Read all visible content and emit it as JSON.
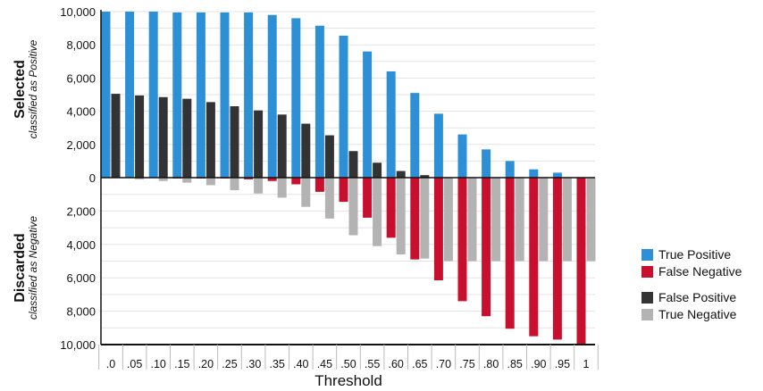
{
  "chart_data": {
    "type": "bar",
    "xlabel": "Threshold",
    "top_label": {
      "title": "Selected",
      "subtitle": "classified as Positive"
    },
    "bottom_label": {
      "title": "Discarded",
      "subtitle": "classified as Negative"
    },
    "yticks_top": [
      "10,000",
      "8,000",
      "6,000",
      "4,000",
      "2,000",
      "0"
    ],
    "yticks_bottom": [
      "2,000",
      "4,000",
      "6,000",
      "8,000",
      "10,000"
    ],
    "ylim_top": [
      0,
      10000
    ],
    "ylim_bottom": [
      0,
      10000
    ],
    "categories": [
      ".0",
      ".05",
      ".10",
      ".15",
      ".20",
      ".25",
      ".30",
      ".35",
      ".40",
      ".45",
      ".50",
      ".55",
      ".60",
      ".65",
      ".70",
      ".75",
      ".80",
      ".85",
      ".90",
      ".95",
      "1"
    ],
    "series": [
      {
        "name": "True Positive",
        "direction": "up",
        "color": "#2d8fd5",
        "values": [
          10000,
          10000,
          10000,
          9950,
          9950,
          9950,
          9950,
          9800,
          9600,
          9150,
          8550,
          7600,
          6400,
          5100,
          3850,
          2600,
          1700,
          1000,
          500,
          300,
          0
        ]
      },
      {
        "name": "False Positive",
        "direction": "up",
        "color": "#333333",
        "values": [
          5050,
          4950,
          4850,
          4750,
          4550,
          4300,
          4050,
          3800,
          3250,
          2550,
          1600,
          900,
          400,
          150,
          0,
          0,
          0,
          0,
          0,
          0,
          0
        ]
      },
      {
        "name": "False Negative",
        "direction": "down",
        "color": "#c8102e",
        "values": [
          0,
          0,
          0,
          50,
          50,
          50,
          100,
          200,
          400,
          850,
          1450,
          2400,
          3600,
          4900,
          6150,
          7400,
          8300,
          9050,
          9500,
          9700,
          10000
        ]
      },
      {
        "name": "True Negative",
        "direction": "down",
        "color": "#b3b3b3",
        "values": [
          0,
          100,
          200,
          300,
          450,
          750,
          950,
          1200,
          1750,
          2450,
          3450,
          4100,
          4600,
          4850,
          5000,
          5000,
          5000,
          5000,
          5000,
          5000,
          5000
        ]
      }
    ],
    "legend": {
      "position": "right",
      "groups": [
        [
          "True Positive",
          "False Negative"
        ],
        [
          "False Positive",
          "True Negative"
        ]
      ]
    },
    "grid": "horizontal"
  }
}
